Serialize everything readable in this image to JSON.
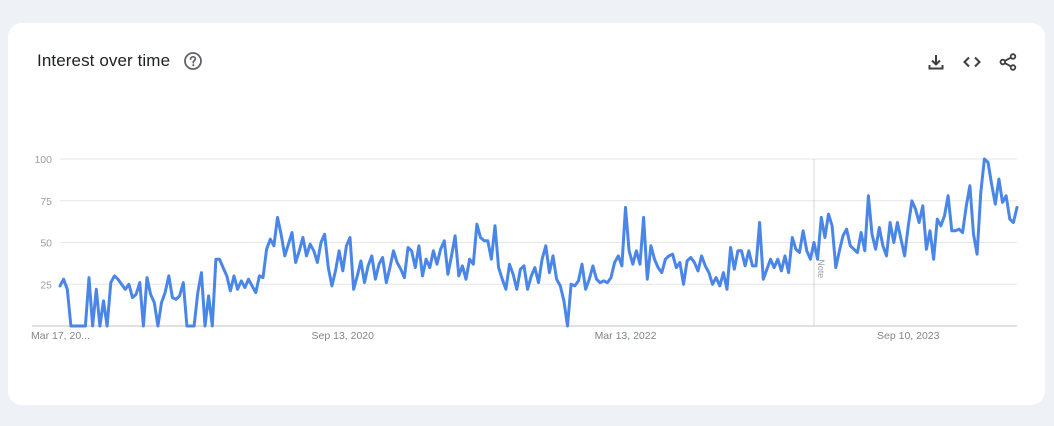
{
  "card": {
    "title": "Interest over time",
    "help_icon": "help-circle-icon",
    "actions": [
      {
        "name": "download-button",
        "icon": "download-icon"
      },
      {
        "name": "embed-button",
        "icon": "code-icon"
      },
      {
        "name": "share-button",
        "icon": "share-icon"
      }
    ]
  },
  "colors": {
    "line": "#4a86e8",
    "grid": "#e6e6e6",
    "axis": "#cfcfcf",
    "page_bg": "#eef2f7",
    "card_bg": "#ffffff"
  },
  "annotation": {
    "label": "Note",
    "x_index": 208
  },
  "chart_data": {
    "type": "line",
    "title": "Interest over time",
    "xlabel": "",
    "ylabel": "",
    "ylim": [
      0,
      100
    ],
    "y_ticks": [
      25,
      50,
      75,
      100
    ],
    "x_tick_labels": [
      {
        "label": "Mar 17, 20...",
        "index": 0
      },
      {
        "label": "Sep 13, 2020",
        "index": 78
      },
      {
        "label": "Mar 13, 2022",
        "index": 156
      },
      {
        "label": "Sep 10, 2023",
        "index": 234
      }
    ],
    "grid": true,
    "legend": null,
    "series": [
      {
        "name": "Interest",
        "values": [
          24,
          28,
          22,
          0,
          0,
          0,
          0,
          0,
          29,
          0,
          22,
          0,
          15,
          0,
          26,
          30,
          28,
          25,
          22,
          25,
          17,
          19,
          26,
          0,
          29,
          19,
          14,
          0,
          14,
          20,
          30,
          17,
          16,
          18,
          26,
          0,
          0,
          0,
          20,
          32,
          0,
          18,
          0,
          40,
          40,
          35,
          30,
          21,
          30,
          22,
          27,
          23,
          28,
          24,
          20,
          30,
          29,
          46,
          52,
          48,
          65,
          55,
          42,
          49,
          56,
          38,
          45,
          53,
          42,
          49,
          45,
          38,
          50,
          55,
          35,
          24,
          33,
          45,
          33,
          48,
          53,
          22,
          30,
          39,
          26,
          36,
          42,
          28,
          37,
          41,
          26,
          35,
          45,
          38,
          34,
          29,
          47,
          45,
          35,
          48,
          30,
          40,
          35,
          45,
          37,
          46,
          51,
          31,
          42,
          54,
          30,
          36,
          28,
          40,
          37,
          61,
          53,
          51,
          51,
          40,
          60,
          35,
          28,
          22,
          37,
          31,
          22,
          34,
          36,
          22,
          30,
          35,
          26,
          40,
          48,
          32,
          42,
          28,
          24,
          15,
          0,
          25,
          24,
          27,
          37,
          22,
          28,
          36,
          28,
          26,
          27,
          26,
          29,
          38,
          42,
          36,
          71,
          45,
          37,
          45,
          37,
          65,
          28,
          48,
          40,
          35,
          32,
          40,
          42,
          43,
          35,
          38,
          25,
          39,
          41,
          38,
          33,
          42,
          36,
          32,
          25,
          29,
          24,
          32,
          22,
          47,
          34,
          45,
          45,
          36,
          45,
          36,
          36,
          62,
          28,
          34,
          40,
          35,
          40,
          33,
          42,
          32,
          53,
          46,
          44,
          57,
          45,
          40,
          50,
          40,
          65,
          53,
          67,
          60,
          35,
          45,
          54,
          58,
          48,
          46,
          44,
          56,
          45,
          78,
          55,
          46,
          59,
          48,
          42,
          62,
          50,
          62,
          52,
          42,
          60,
          75,
          70,
          62,
          72,
          46,
          57,
          40,
          64,
          60,
          66,
          78,
          57,
          57,
          58,
          56,
          72,
          84,
          55,
          43,
          80,
          100,
          98,
          85,
          73,
          88,
          74,
          78,
          64,
          62,
          71
        ]
      }
    ]
  }
}
